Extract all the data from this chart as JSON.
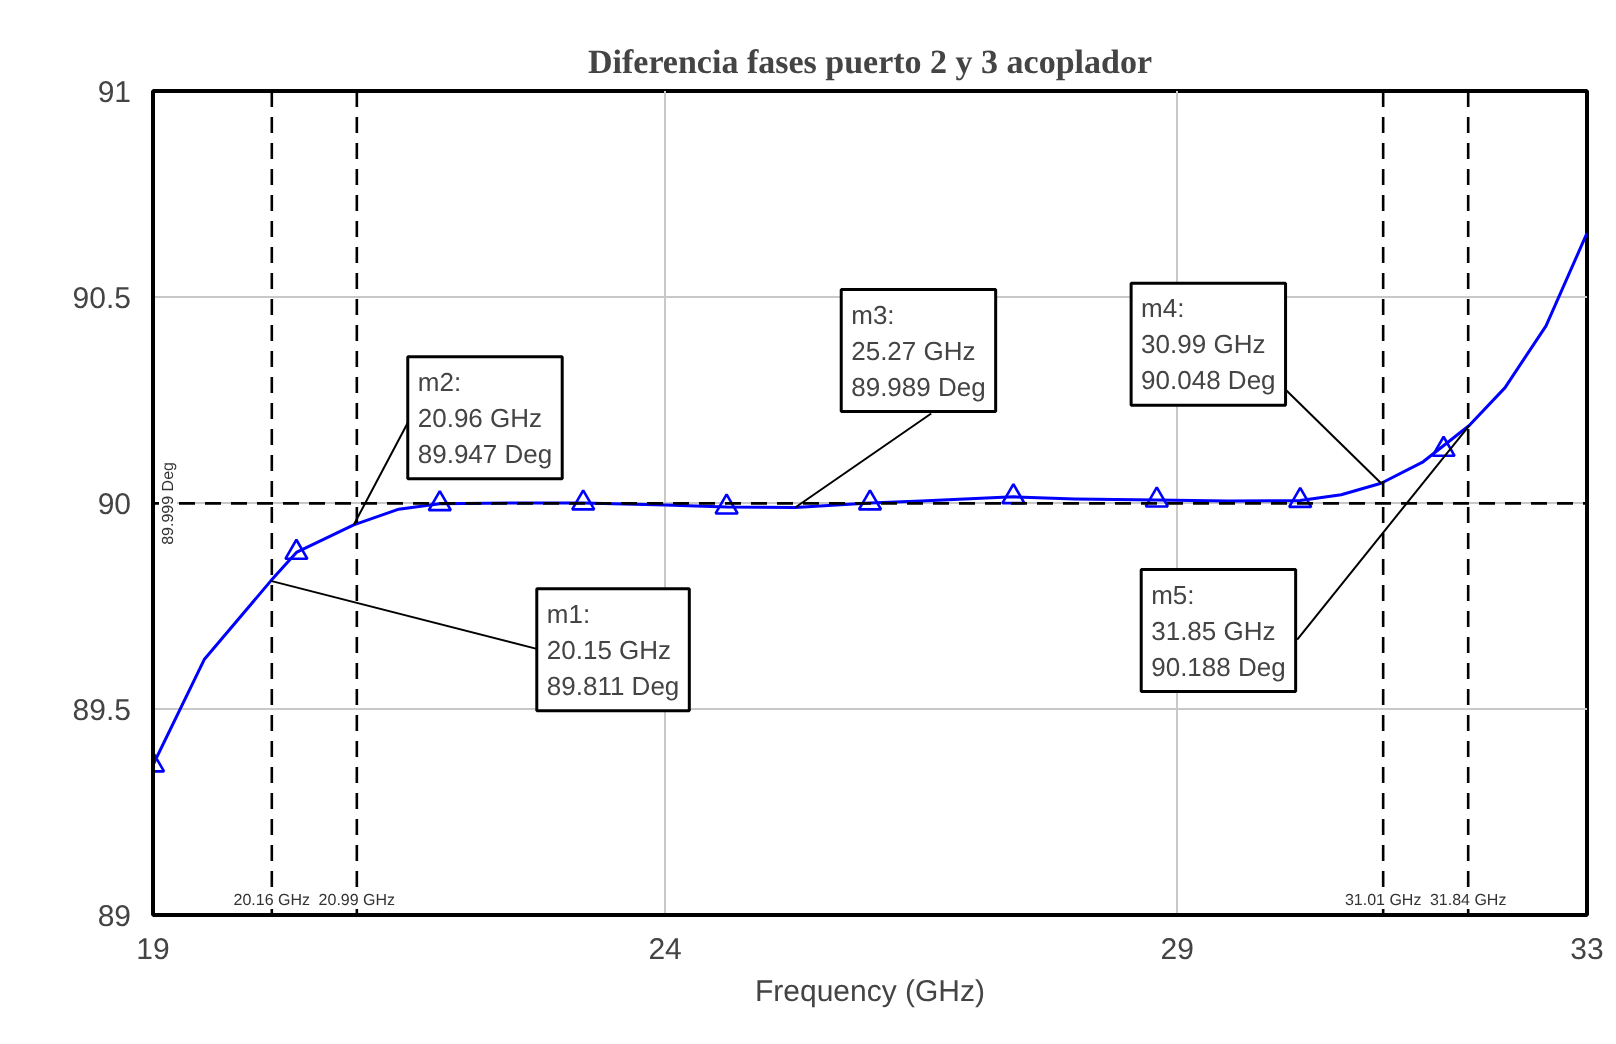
{
  "chart_data": {
    "type": "line",
    "title": "Diferencia fases puerto 2 y 3 acoplador",
    "xlabel": "Frequency (GHz)",
    "xlim": [
      19,
      33
    ],
    "xticks": [
      19,
      24,
      29,
      33
    ],
    "ylim": [
      89,
      91
    ],
    "yticks": [
      89,
      89.5,
      90,
      90.5,
      91
    ],
    "grid": true,
    "series": [
      {
        "color": "#0000ff",
        "marker": "none",
        "line_style": "solid",
        "x": [
          19,
          19.5,
          20.15,
          20.4,
          20.96,
          21.4,
          21.8,
          22.5,
          23.2,
          24.0,
          24.6,
          25.27,
          26.0,
          26.5,
          27.4,
          28.0,
          28.8,
          29.5,
          30.2,
          30.6,
          30.99,
          31.4,
          31.85,
          32.2,
          32.6,
          33
        ],
        "values": [
          89.364,
          89.62,
          89.811,
          89.88,
          89.947,
          89.985,
          89.998,
          90.0,
          90.0,
          89.995,
          89.99,
          89.989,
          90.0,
          90.005,
          90.015,
          90.01,
          90.007,
          90.005,
          90.006,
          90.02,
          90.048,
          90.1,
          90.188,
          90.28,
          90.43,
          90.655
        ]
      },
      {
        "type": "scatter",
        "color": "#0000ff",
        "marker": "triangle",
        "x": [
          19,
          20.4,
          21.8,
          23.2,
          24.6,
          26.0,
          27.4,
          28.8,
          30.2,
          31.6
        ],
        "values": [
          89.364,
          89.88,
          89.998,
          90.0,
          89.99,
          90.0,
          90.015,
          90.007,
          90.006,
          90.13
        ]
      }
    ],
    "ref_lines": [
      {
        "axis": "x",
        "value": 20.16,
        "label": "20.16 GHz",
        "line_style": "dashed",
        "color": "#000000"
      },
      {
        "axis": "x",
        "value": 20.99,
        "label": "20.99 GHz",
        "line_style": "dashed",
        "color": "#000000"
      },
      {
        "axis": "x",
        "value": 31.01,
        "label": "31.01 GHz",
        "line_style": "dashed",
        "color": "#000000"
      },
      {
        "axis": "x",
        "value": 31.84,
        "label": "31.84 GHz",
        "line_style": "dashed",
        "color": "#000000"
      },
      {
        "axis": "y",
        "value": 89.999,
        "label": "89.999 Deg",
        "line_style": "dashed",
        "color": "#000000"
      }
    ],
    "annotations": [
      {
        "text": "m1:\n20.15 GHz\n89.811 Deg",
        "x": 20.15,
        "y": 89.811
      },
      {
        "text": "m2:\n20.96 GHz\n89.947 Deg",
        "x": 20.96,
        "y": 89.947
      },
      {
        "text": "m3:\n25.27 GHz\n89.989 Deg",
        "x": 25.27,
        "y": 89.989
      },
      {
        "text": "m4:\n30.99 GHz\n90.048 Deg",
        "x": 30.99,
        "y": 90.048
      },
      {
        "text": "m5:\n31.85 GHz\n90.188 Deg",
        "x": 31.85,
        "y": 90.188
      }
    ]
  }
}
